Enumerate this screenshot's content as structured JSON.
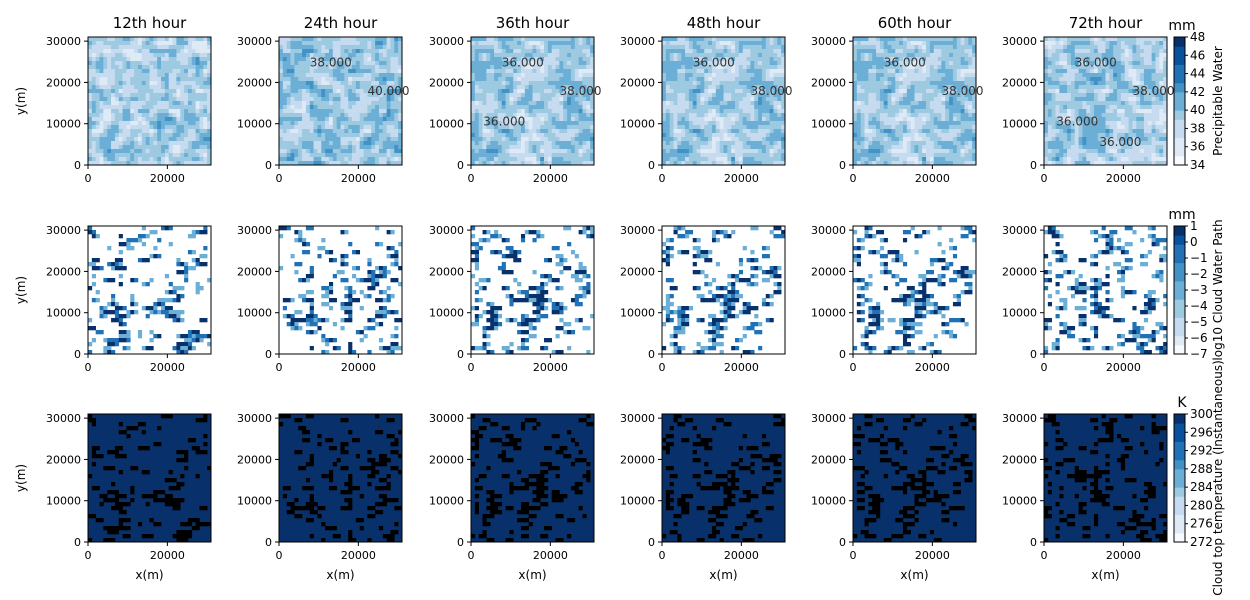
{
  "chart_data": {
    "type": "heatmap",
    "columns": [
      "12th hour",
      "24th hour",
      "36th hour",
      "48th hour",
      "60th hour",
      "72th hour"
    ],
    "xlabel": "x(m)",
    "ylabel": "y(m)",
    "xlim": [
      0,
      31000
    ],
    "ylim": [
      0,
      31000
    ],
    "x_ticks": [
      0,
      20000
    ],
    "y_ticks": [
      0,
      10000,
      20000,
      30000
    ],
    "rows": [
      {
        "variable": "Precipitable Water",
        "unit": "mm",
        "colorbar_ticks": [
          34,
          36,
          38,
          40,
          42,
          44,
          46,
          48
        ],
        "vmin": 34,
        "vmax": 48,
        "contour_labels": [
          [],
          [
            "38.000",
            "40.000"
          ],
          [
            "36.000",
            "38.000",
            "36.000"
          ],
          [
            "36.000",
            "38.000"
          ],
          [
            "36.000",
            "38.000"
          ],
          [
            "36.000",
            "38.000",
            "36.000",
            "36.000"
          ]
        ]
      },
      {
        "variable": "log10 Cloud Water Path",
        "unit": "mm",
        "colorbar_ticks": [
          1,
          0,
          -1,
          -2,
          -3,
          -4,
          -5,
          -6,
          -7
        ],
        "vmin": -7,
        "vmax": 1
      },
      {
        "variable": "Cloud top temperature (Instantaneous)",
        "unit": "K",
        "colorbar_ticks": [
          300,
          296,
          292,
          288,
          284,
          280,
          276,
          272
        ],
        "vmin": 272,
        "vmax": 300
      }
    ],
    "colormap": [
      "#f7fbff",
      "#deebf7",
      "#c6dbef",
      "#9ecae1",
      "#6baed6",
      "#4292c6",
      "#2171b5",
      "#08519c",
      "#08306b"
    ]
  }
}
